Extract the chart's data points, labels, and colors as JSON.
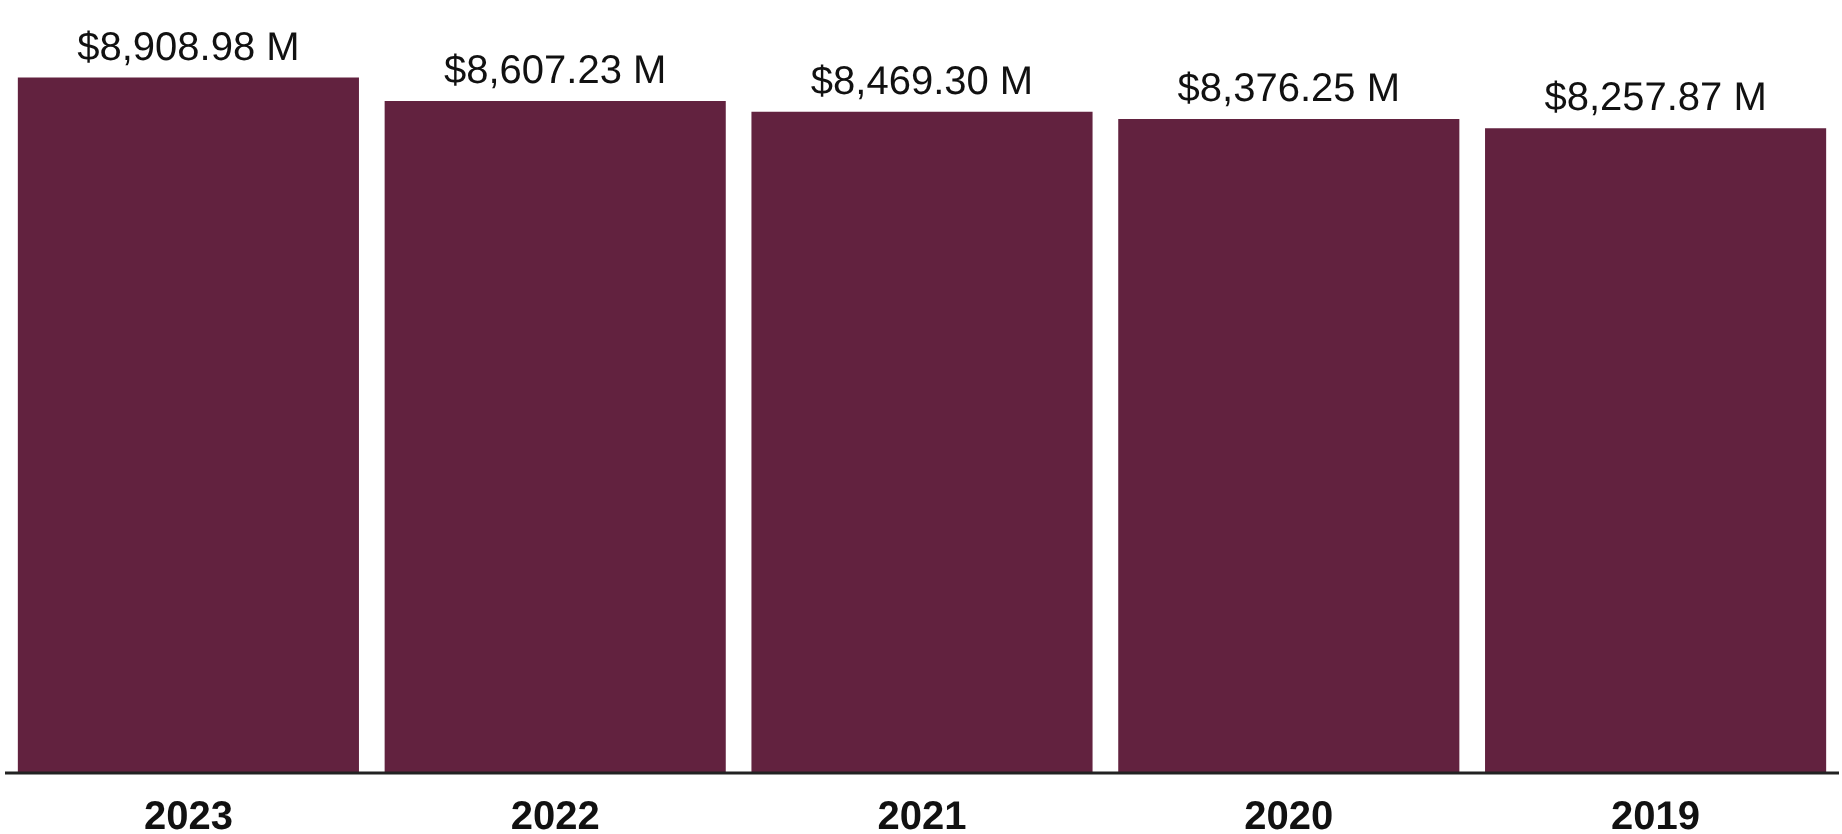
{
  "chart_data": {
    "type": "bar",
    "categories": [
      "2023",
      "2022",
      "2021",
      "2020",
      "2019"
    ],
    "values": [
      8908.98,
      8607.23,
      8469.3,
      8376.25,
      8257.87
    ],
    "value_labels": [
      "$8,908.98 M",
      "$8,607.23 M",
      "$8,469.30 M",
      "$8,376.25 M",
      "$8,257.87 M"
    ],
    "color": "#62223f"
  }
}
